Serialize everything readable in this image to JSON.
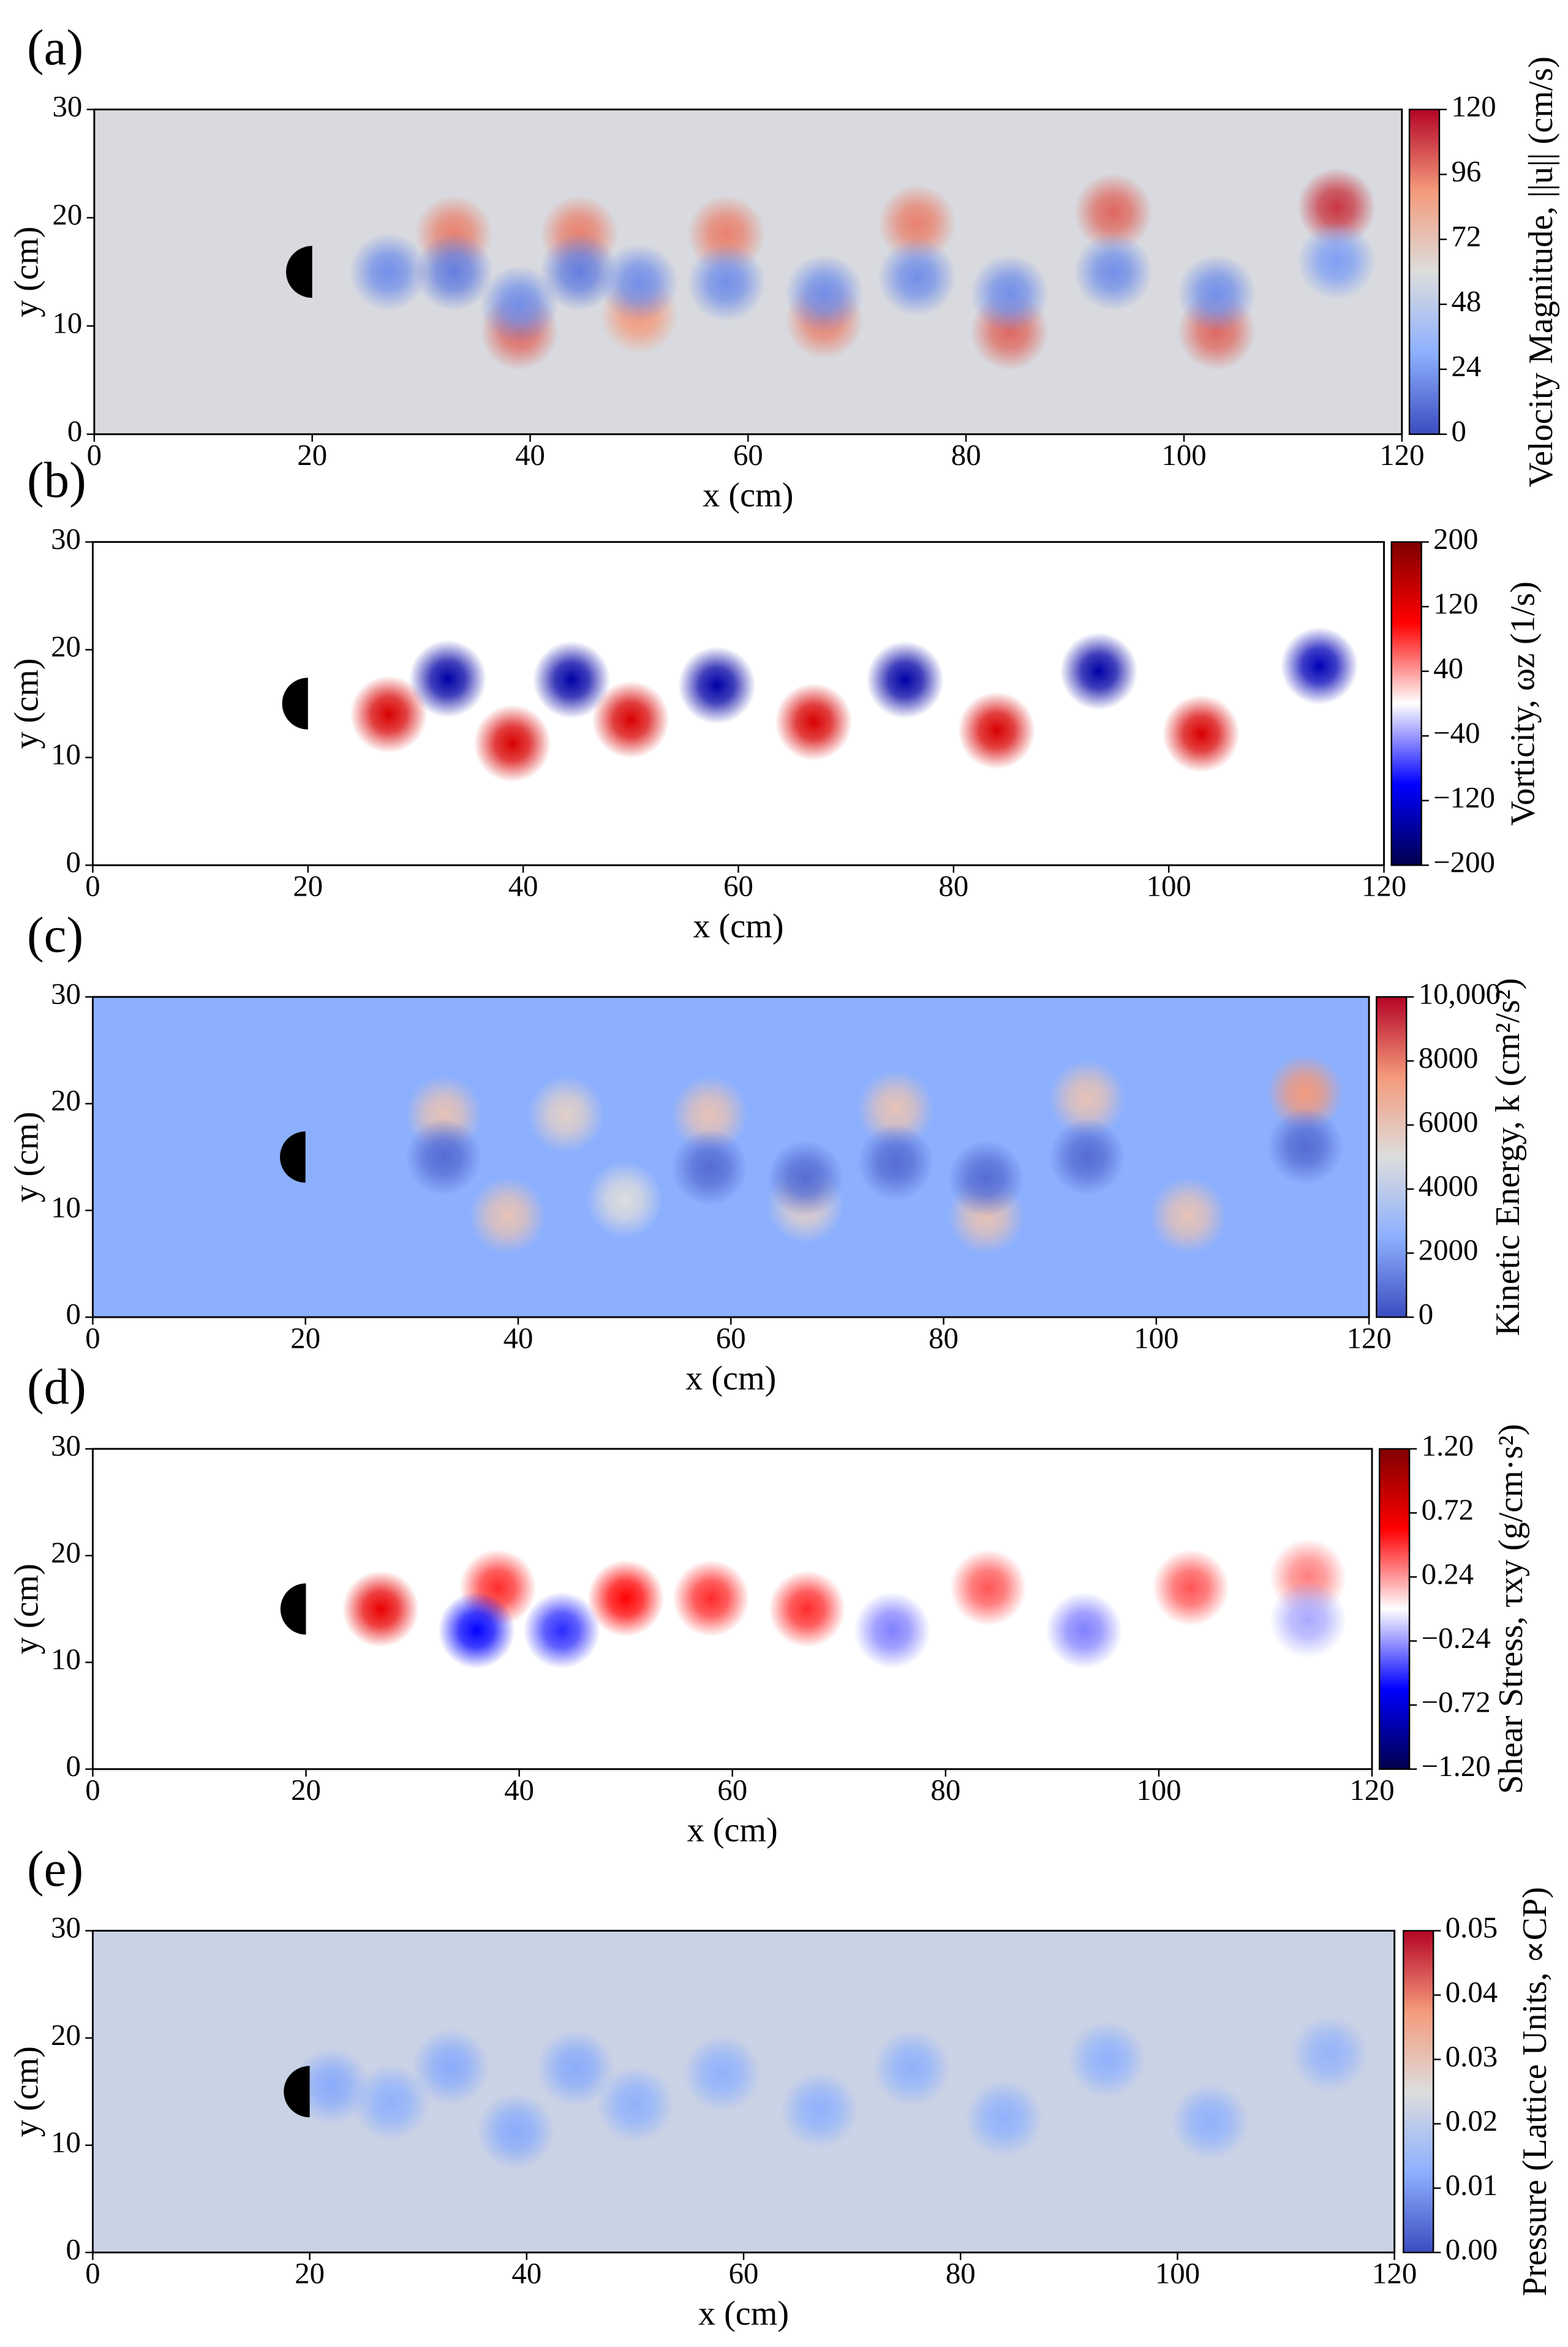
{
  "chart_data": [
    {
      "type": "heatmap",
      "panel_label": "(a)",
      "xlabel": "x (cm)",
      "ylabel": "y (cm)",
      "xlim": [
        0,
        120
      ],
      "ylim": [
        0,
        30
      ],
      "xticks": [
        0,
        20,
        40,
        60,
        80,
        100,
        120
      ],
      "yticks": [
        0,
        10,
        20,
        30
      ],
      "colorbar": {
        "label": "Velocity Magnitude, ||u|| (cm/s)",
        "lim": [
          0,
          120
        ],
        "ticks": [
          0,
          24,
          48,
          72,
          96,
          120
        ]
      },
      "colormap": [
        "#3b4cc0",
        "#8db0fe",
        "#dddddd",
        "#f49a7b",
        "#b40426"
      ],
      "background": 58,
      "obstacle": {
        "x": 20,
        "y": 15,
        "r": 2.4
      },
      "features": [
        {
          "x": 33,
          "y": 18.5,
          "value": 95
        },
        {
          "x": 44.5,
          "y": 18.5,
          "value": 95
        },
        {
          "x": 58,
          "y": 18.5,
          "value": 95
        },
        {
          "x": 75.5,
          "y": 19.5,
          "value": 95
        },
        {
          "x": 93.5,
          "y": 20.5,
          "value": 100
        },
        {
          "x": 114,
          "y": 21,
          "value": 110
        },
        {
          "x": 39,
          "y": 9.5,
          "value": 100
        },
        {
          "x": 50,
          "y": 11,
          "value": 90
        },
        {
          "x": 67,
          "y": 10.5,
          "value": 95
        },
        {
          "x": 84,
          "y": 9.5,
          "value": 100
        },
        {
          "x": 103,
          "y": 9.5,
          "value": 100
        },
        {
          "x": 27,
          "y": 15,
          "value": 20
        },
        {
          "x": 33,
          "y": 15,
          "value": 15
        },
        {
          "x": 44.5,
          "y": 15,
          "value": 15
        },
        {
          "x": 58,
          "y": 14,
          "value": 20
        },
        {
          "x": 75.5,
          "y": 14.5,
          "value": 20
        },
        {
          "x": 93.5,
          "y": 15,
          "value": 20
        },
        {
          "x": 114,
          "y": 16,
          "value": 25
        },
        {
          "x": 39,
          "y": 12,
          "value": 20
        },
        {
          "x": 50,
          "y": 14,
          "value": 20
        },
        {
          "x": 67,
          "y": 13,
          "value": 20
        },
        {
          "x": 84,
          "y": 13,
          "value": 20
        },
        {
          "x": 103,
          "y": 13,
          "value": 20
        }
      ]
    },
    {
      "type": "heatmap",
      "panel_label": "(b)",
      "xlabel": "x (cm)",
      "ylabel": "y (cm)",
      "xlim": [
        0,
        120
      ],
      "ylim": [
        0,
        30
      ],
      "xticks": [
        0,
        20,
        40,
        60,
        80,
        100,
        120
      ],
      "yticks": [
        0,
        10,
        20,
        30
      ],
      "colorbar": {
        "label": "Vorticity, ωz (1/s)",
        "lim": [
          -200,
          200
        ],
        "ticks": [
          {
            "value": -200,
            "label": "−200"
          },
          {
            "value": -120,
            "label": "−120"
          },
          {
            "value": -40,
            "label": "−40"
          },
          40,
          120,
          200
        ]
      },
      "colormap": [
        "#00004c",
        "#0000ff",
        "#ffffff",
        "#ff0000",
        "#7f0000"
      ],
      "background": 0,
      "obstacle": {
        "x": 20,
        "y": 15,
        "r": 2.4
      },
      "features": [
        {
          "x": 33,
          "y": 17.3,
          "value": -150
        },
        {
          "x": 44.5,
          "y": 17.2,
          "value": -150
        },
        {
          "x": 58,
          "y": 16.7,
          "value": -150
        },
        {
          "x": 75.5,
          "y": 17.2,
          "value": -150
        },
        {
          "x": 93.5,
          "y": 18,
          "value": -150
        },
        {
          "x": 114,
          "y": 18.5,
          "value": -140
        },
        {
          "x": 27.5,
          "y": 14,
          "value": 130
        },
        {
          "x": 39,
          "y": 11.3,
          "value": 130
        },
        {
          "x": 50,
          "y": 13.5,
          "value": 130
        },
        {
          "x": 67,
          "y": 13.3,
          "value": 130
        },
        {
          "x": 84,
          "y": 12.5,
          "value": 130
        },
        {
          "x": 103,
          "y": 12.2,
          "value": 130
        }
      ]
    },
    {
      "type": "heatmap",
      "panel_label": "(c)",
      "xlabel": "x (cm)",
      "ylabel": "y (cm)",
      "xlim": [
        0,
        120
      ],
      "ylim": [
        0,
        30
      ],
      "xticks": [
        0,
        20,
        40,
        60,
        80,
        100,
        120
      ],
      "yticks": [
        0,
        10,
        20,
        30
      ],
      "colorbar": {
        "label": "Kinetic Energy, k (cm²/s²)",
        "lim": [
          0,
          10000
        ],
        "ticks": [
          0,
          2000,
          4000,
          6000,
          8000,
          {
            "value": 10000,
            "label": "10,000"
          }
        ]
      },
      "colormap": [
        "#3b4cc0",
        "#8db0fe",
        "#dddddd",
        "#f49a7b",
        "#b40426"
      ],
      "background": 2500,
      "obstacle": {
        "x": 20,
        "y": 15,
        "r": 2.4
      },
      "features": [
        {
          "x": 33,
          "y": 19,
          "value": 6000
        },
        {
          "x": 44.5,
          "y": 19,
          "value": 5500
        },
        {
          "x": 58,
          "y": 19,
          "value": 6000
        },
        {
          "x": 75.5,
          "y": 19.5,
          "value": 6000
        },
        {
          "x": 93.5,
          "y": 20.5,
          "value": 6000
        },
        {
          "x": 114,
          "y": 21,
          "value": 7500
        },
        {
          "x": 39,
          "y": 9.5,
          "value": 6000
        },
        {
          "x": 50,
          "y": 11,
          "value": 5000
        },
        {
          "x": 67,
          "y": 10.5,
          "value": 5500
        },
        {
          "x": 84,
          "y": 9.5,
          "value": 6000
        },
        {
          "x": 103,
          "y": 9.5,
          "value": 6000
        },
        {
          "x": 33,
          "y": 15,
          "value": 800
        },
        {
          "x": 58,
          "y": 14,
          "value": 800
        },
        {
          "x": 75.5,
          "y": 14.5,
          "value": 800
        },
        {
          "x": 93.5,
          "y": 15,
          "value": 800
        },
        {
          "x": 114,
          "y": 16,
          "value": 800
        },
        {
          "x": 67,
          "y": 13,
          "value": 800
        },
        {
          "x": 84,
          "y": 13,
          "value": 800
        }
      ]
    },
    {
      "type": "heatmap",
      "panel_label": "(d)",
      "xlabel": "x (cm)",
      "ylabel": "y (cm)",
      "xlim": [
        0,
        120
      ],
      "ylim": [
        0,
        30
      ],
      "xticks": [
        0,
        20,
        40,
        60,
        80,
        100,
        120
      ],
      "yticks": [
        0,
        10,
        20,
        30
      ],
      "colorbar": {
        "label": "Shear Stress, τxy (g/cm·s²)",
        "lim": [
          -1.2,
          1.2
        ],
        "ticks": [
          {
            "value": -1.2,
            "label": "−1.20"
          },
          {
            "value": -0.72,
            "label": "−0.72"
          },
          {
            "value": -0.24,
            "label": "−0.24"
          },
          0.24,
          0.72,
          {
            "value": 1.2,
            "label": "1.20"
          }
        ]
      },
      "colormap": [
        "#00004c",
        "#0000ff",
        "#ffffff",
        "#ff0000",
        "#7f0000"
      ],
      "background": 0,
      "obstacle": {
        "x": 20,
        "y": 15,
        "r": 2.4
      },
      "features": [
        {
          "x": 27,
          "y": 15,
          "value": 0.7
        },
        {
          "x": 38,
          "y": 17,
          "value": 0.5
        },
        {
          "x": 50,
          "y": 16,
          "value": 0.6
        },
        {
          "x": 58,
          "y": 16,
          "value": 0.5
        },
        {
          "x": 67,
          "y": 15,
          "value": 0.5
        },
        {
          "x": 84,
          "y": 17,
          "value": 0.4
        },
        {
          "x": 103,
          "y": 17,
          "value": 0.4
        },
        {
          "x": 114,
          "y": 18,
          "value": 0.3
        },
        {
          "x": 36,
          "y": 13,
          "value": -0.6
        },
        {
          "x": 44,
          "y": 13,
          "value": -0.5
        },
        {
          "x": 75,
          "y": 13,
          "value": -0.3
        },
        {
          "x": 93,
          "y": 13,
          "value": -0.3
        },
        {
          "x": 114,
          "y": 14,
          "value": -0.2
        }
      ]
    },
    {
      "type": "heatmap",
      "panel_label": "(e)",
      "xlabel": "x (cm)",
      "ylabel": "y (cm)",
      "xlim": [
        0,
        120
      ],
      "ylim": [
        0,
        30
      ],
      "xticks": [
        0,
        20,
        40,
        60,
        80,
        100,
        120
      ],
      "yticks": [
        0,
        10,
        20,
        30
      ],
      "colorbar": {
        "label": "Pressure (Lattice Units, ∝CP)",
        "lim": [
          0,
          0.05
        ],
        "ticks": [
          {
            "value": 0,
            "label": "0.00"
          },
          0.01,
          0.02,
          0.03,
          0.04,
          0.05
        ]
      },
      "colormap": [
        "#3b4cc0",
        "#8db0fe",
        "#dddddd",
        "#f49a7b",
        "#b40426"
      ],
      "background": 0.022,
      "obstacle": {
        "x": 20,
        "y": 15,
        "r": 2.4
      },
      "features": [
        {
          "x": 22,
          "y": 15.5,
          "value": 0.012
        },
        {
          "x": 27.5,
          "y": 14,
          "value": 0.013
        },
        {
          "x": 33,
          "y": 17.3,
          "value": 0.012
        },
        {
          "x": 39,
          "y": 11.3,
          "value": 0.012
        },
        {
          "x": 44.5,
          "y": 17.2,
          "value": 0.012
        },
        {
          "x": 50,
          "y": 13.8,
          "value": 0.013
        },
        {
          "x": 58,
          "y": 16.7,
          "value": 0.013
        },
        {
          "x": 67,
          "y": 13.3,
          "value": 0.013
        },
        {
          "x": 75.5,
          "y": 17.2,
          "value": 0.013
        },
        {
          "x": 84,
          "y": 12.5,
          "value": 0.013
        },
        {
          "x": 93.5,
          "y": 18,
          "value": 0.013
        },
        {
          "x": 103,
          "y": 12.2,
          "value": 0.013
        },
        {
          "x": 114,
          "y": 18.5,
          "value": 0.014
        }
      ]
    }
  ]
}
